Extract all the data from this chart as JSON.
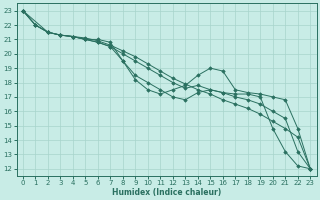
{
  "xlabel": "Humidex (Indice chaleur)",
  "xlim": [
    -0.5,
    23.5
  ],
  "ylim": [
    11.5,
    23.5
  ],
  "yticks": [
    12,
    13,
    14,
    15,
    16,
    17,
    18,
    19,
    20,
    21,
    22,
    23
  ],
  "xticks": [
    0,
    1,
    2,
    3,
    4,
    5,
    6,
    7,
    8,
    9,
    10,
    11,
    12,
    13,
    14,
    15,
    16,
    17,
    18,
    19,
    20,
    21,
    22,
    23
  ],
  "bg_color": "#c8ece6",
  "grid_color": "#a8d4cc",
  "line_color": "#2a7060",
  "lines": [
    {
      "x": [
        0,
        1,
        2,
        3,
        4,
        5,
        6,
        7,
        8,
        9,
        10,
        11,
        12,
        13,
        14,
        15,
        16,
        17,
        18,
        19,
        20,
        21,
        22,
        23
      ],
      "y": [
        23,
        22,
        21.5,
        21.3,
        21.2,
        21.1,
        20.9,
        20.6,
        20.2,
        19.8,
        19.3,
        18.8,
        18.3,
        17.9,
        17.5,
        17.2,
        16.8,
        16.5,
        16.2,
        15.8,
        15.3,
        14.8,
        14.2,
        12.0
      ]
    },
    {
      "x": [
        0,
        1,
        2,
        3,
        4,
        5,
        6,
        7,
        8,
        9,
        10,
        11,
        12,
        13,
        14,
        15,
        16,
        17,
        18,
        19,
        20,
        21,
        22,
        23
      ],
      "y": [
        23,
        22,
        21.5,
        21.3,
        21.2,
        21.0,
        21.0,
        20.8,
        19.5,
        18.2,
        17.5,
        17.2,
        17.5,
        17.8,
        18.5,
        19.0,
        18.8,
        17.5,
        17.3,
        17.2,
        17.0,
        16.8,
        14.8,
        12.0
      ]
    },
    {
      "x": [
        0,
        2,
        3,
        4,
        5,
        6,
        7,
        8,
        9,
        10,
        11,
        12,
        13,
        14,
        15,
        16,
        17,
        18,
        19,
        20,
        21,
        22,
        23
      ],
      "y": [
        23,
        21.5,
        21.3,
        21.2,
        21.0,
        20.8,
        20.5,
        19.5,
        18.5,
        18.0,
        17.5,
        17.0,
        16.8,
        17.3,
        17.5,
        17.3,
        17.2,
        17.2,
        17.0,
        14.8,
        13.2,
        12.2,
        12.0
      ]
    },
    {
      "x": [
        0,
        1,
        2,
        3,
        4,
        5,
        6,
        7,
        8,
        9,
        10,
        11,
        12,
        13,
        14,
        15,
        16,
        17,
        18,
        19,
        20,
        21,
        22,
        23
      ],
      "y": [
        23,
        22,
        21.5,
        21.3,
        21.2,
        21.0,
        20.8,
        20.5,
        20.0,
        19.5,
        19.0,
        18.5,
        18.0,
        17.6,
        17.8,
        17.5,
        17.3,
        17.0,
        16.8,
        16.5,
        16.0,
        15.5,
        13.2,
        12.0
      ]
    }
  ]
}
